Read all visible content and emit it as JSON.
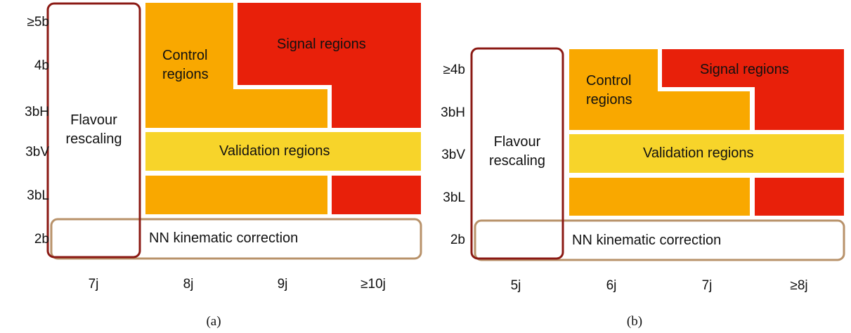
{
  "colors": {
    "control": "#F9A800",
    "signal": "#E8200A",
    "validation": "#F7D42A",
    "flavour_border": "#8B1A14",
    "nn_border": "#B8926A"
  },
  "panel_a": {
    "row_labels": [
      "≥5b",
      "4b",
      "3bH",
      "3bV",
      "3bL",
      "2b"
    ],
    "col_labels": [
      "7j",
      "8j",
      "9j",
      "≥10j"
    ],
    "control_label_1": "Control",
    "control_label_2": "regions",
    "signal_label": "Signal regions",
    "validation_label": "Validation regions",
    "flavour_label_1": "Flavour",
    "flavour_label_2": "rescaling",
    "nn_label": "NN kinematic correction",
    "caption": "(a)"
  },
  "panel_b": {
    "row_labels": [
      "≥4b",
      "3bH",
      "3bV",
      "3bL",
      "2b"
    ],
    "col_labels": [
      "5j",
      "6j",
      "7j",
      "≥8j"
    ],
    "control_label_1": "Control",
    "control_label_2": "regions",
    "signal_label": "Signal regions",
    "validation_label": "Validation regions",
    "flavour_label_1": "Flavour",
    "flavour_label_2": "rescaling",
    "nn_label": "NN kinematic correction",
    "caption": "(b)"
  }
}
